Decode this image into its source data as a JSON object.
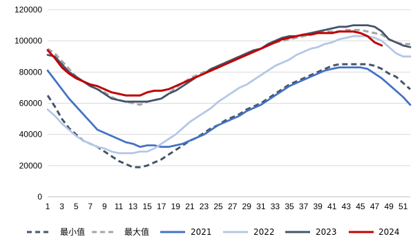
{
  "chart_data": {
    "type": "line",
    "title": "",
    "xlabel": "",
    "ylabel": "",
    "ylim": [
      0,
      120000
    ],
    "yticks": [
      0,
      20000,
      40000,
      60000,
      80000,
      100000,
      120000
    ],
    "ytick_labels": [
      "0",
      "20000",
      "40000",
      "60000",
      "80000",
      "100000",
      "120000"
    ],
    "xlim": [
      1,
      52
    ],
    "xtick_labels": [
      "1",
      "3",
      "5",
      "7",
      "9",
      "11",
      "13",
      "15",
      "17",
      "19",
      "21",
      "23",
      "25",
      "27",
      "29",
      "31",
      "33",
      "35",
      "37",
      "39",
      "41",
      "43",
      "45",
      "47",
      "49",
      "51"
    ],
    "grid": "horizontal",
    "legend_position": "bottom",
    "x": [
      1,
      2,
      3,
      4,
      5,
      6,
      7,
      8,
      9,
      10,
      11,
      12,
      13,
      14,
      15,
      16,
      17,
      18,
      19,
      20,
      21,
      22,
      23,
      24,
      25,
      26,
      27,
      28,
      29,
      30,
      31,
      32,
      33,
      34,
      35,
      36,
      37,
      38,
      39,
      40,
      41,
      42,
      43,
      44,
      45,
      46,
      47,
      48,
      49,
      50,
      51,
      52
    ],
    "series": [
      {
        "name": "最小值",
        "color": "#44546a",
        "dash": "dash",
        "values": [
          65000,
          58000,
          50000,
          44000,
          40000,
          36000,
          34000,
          32000,
          29000,
          26000,
          23000,
          21000,
          19000,
          19000,
          20000,
          22000,
          24000,
          27000,
          30000,
          33000,
          36000,
          38000,
          41000,
          44000,
          46000,
          49000,
          51000,
          53000,
          56000,
          58000,
          60000,
          63000,
          66000,
          69000,
          72000,
          74000,
          76000,
          78000,
          80000,
          82000,
          84000,
          85000,
          85000,
          85000,
          85000,
          85000,
          84000,
          82000,
          79000,
          77000,
          73000,
          69000
        ]
      },
      {
        "name": "最大值",
        "color": "#a5a5a5",
        "dash": "dash",
        "values": [
          95000,
          92000,
          87000,
          82000,
          77000,
          74000,
          71000,
          69000,
          67000,
          64000,
          62000,
          61000,
          60000,
          59000,
          61000,
          62000,
          63000,
          66000,
          70000,
          73000,
          76000,
          78000,
          80000,
          82000,
          84000,
          86000,
          88000,
          90000,
          91000,
          93000,
          95000,
          97000,
          99000,
          100000,
          101000,
          102000,
          103000,
          104000,
          105000,
          106000,
          106000,
          106000,
          107000,
          107000,
          107000,
          106000,
          105000,
          104000,
          101000,
          99000,
          98000,
          98000
        ]
      },
      {
        "name": "2021",
        "color": "#4472c4",
        "dash": "solid",
        "values": [
          81000,
          75000,
          69000,
          63000,
          58000,
          53000,
          48000,
          43000,
          41000,
          39000,
          37000,
          35000,
          34000,
          32000,
          33000,
          33000,
          32000,
          32000,
          33000,
          34000,
          36000,
          38000,
          40000,
          43000,
          46000,
          48000,
          50000,
          52000,
          55000,
          57000,
          59000,
          62000,
          65000,
          68000,
          71000,
          73000,
          75000,
          77000,
          79000,
          81000,
          82000,
          83000,
          83000,
          83000,
          83000,
          82000,
          79000,
          76000,
          72000,
          68000,
          64000,
          59000
        ]
      },
      {
        "name": "2022",
        "color": "#b4c7e7",
        "dash": "solid",
        "values": [
          56000,
          52000,
          47000,
          43000,
          39000,
          36000,
          34000,
          32000,
          31000,
          29000,
          28000,
          28000,
          28000,
          29000,
          29000,
          31000,
          34000,
          37000,
          40000,
          44000,
          48000,
          51000,
          54000,
          57000,
          61000,
          64000,
          67000,
          70000,
          72000,
          75000,
          78000,
          81000,
          84000,
          86000,
          88000,
          91000,
          93000,
          95000,
          96000,
          98000,
          99000,
          101000,
          102000,
          103000,
          103000,
          103000,
          102000,
          100000,
          96000,
          92000,
          90000,
          90000
        ]
      },
      {
        "name": "2023",
        "color": "#44546a",
        "dash": "solid",
        "values": [
          91000,
          90000,
          85000,
          80000,
          77000,
          74000,
          71000,
          69000,
          66000,
          63000,
          62000,
          61000,
          61000,
          61000,
          61000,
          62000,
          63000,
          66000,
          68000,
          71000,
          74000,
          77000,
          79000,
          82000,
          84000,
          86000,
          88000,
          90000,
          92000,
          94000,
          95000,
          98000,
          100000,
          102000,
          103000,
          103000,
          104000,
          105000,
          106000,
          107000,
          108000,
          109000,
          109000,
          110000,
          110000,
          110000,
          109000,
          106000,
          101000,
          99000,
          97000,
          96000
        ]
      },
      {
        "name": "2024",
        "color": "#c00000",
        "dash": "solid",
        "values": [
          94000,
          89000,
          83000,
          79000,
          76000,
          74000,
          72000,
          71000,
          69000,
          67000,
          66000,
          65000,
          65000,
          65000,
          67000,
          68000,
          68000,
          69000,
          71000,
          73000,
          75000,
          77000,
          79000,
          81000,
          83000,
          85000,
          87000,
          89000,
          91000,
          93000,
          95000,
          97000,
          99000,
          101000,
          102000,
          103000,
          104000,
          104000,
          105000,
          105000,
          105000,
          106000,
          106000,
          106000,
          105000,
          103000,
          99000,
          97000,
          null,
          null,
          null,
          null
        ]
      }
    ]
  }
}
